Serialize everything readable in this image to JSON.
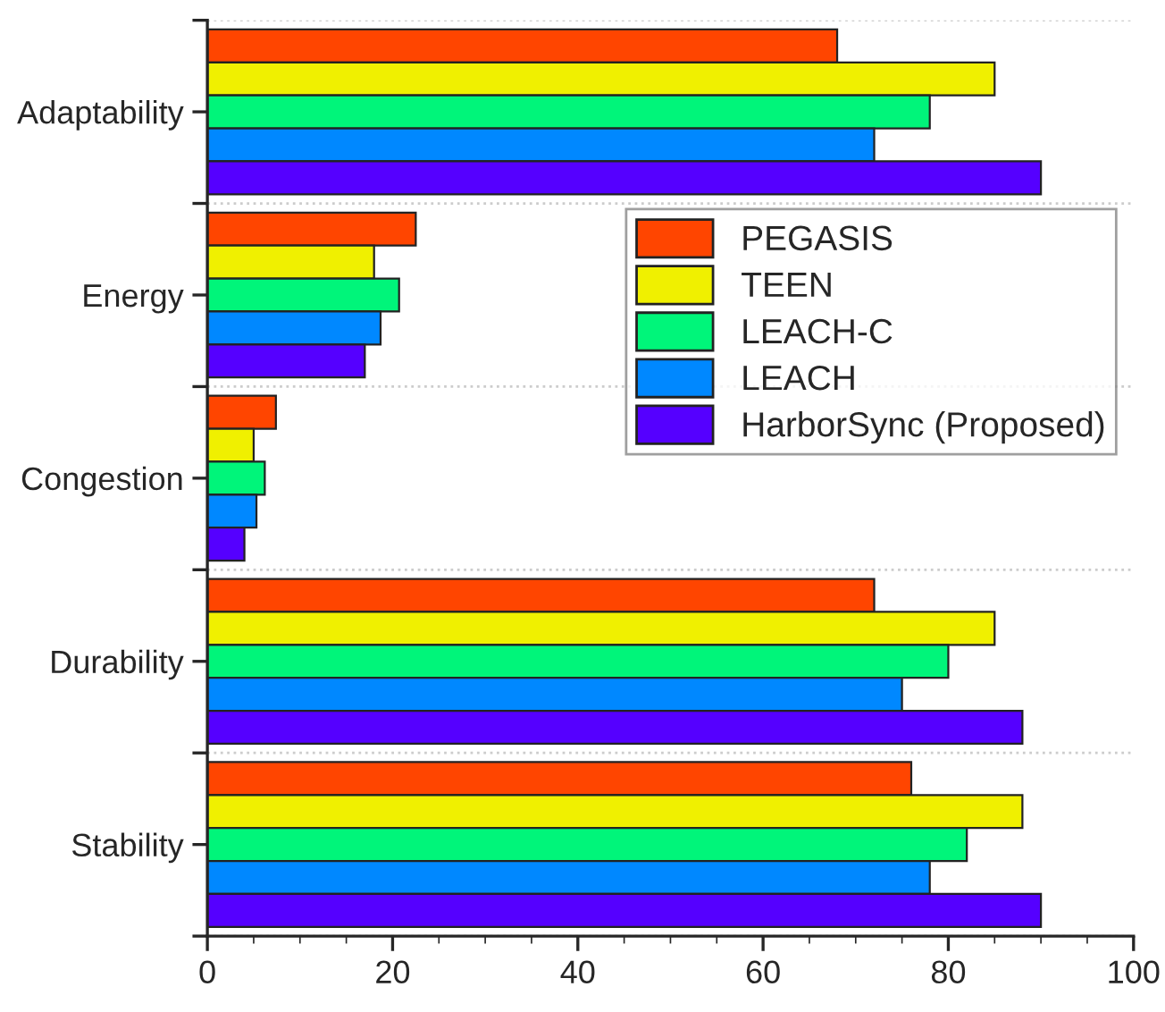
{
  "chart_data": {
    "type": "bar",
    "orientation": "horizontal",
    "categories": [
      "Adaptability",
      "Energy",
      "Congestion",
      "Durability",
      "Stability"
    ],
    "series": [
      {
        "name": "PEGASIS",
        "color": "#ff4500",
        "values": [
          68,
          22.5,
          7.4,
          72,
          76
        ]
      },
      {
        "name": "TEEN",
        "color": "#f0f000",
        "values": [
          85,
          18,
          5,
          85,
          88
        ]
      },
      {
        "name": "LEACH-C",
        "color": "#00f57a",
        "values": [
          78,
          20.7,
          6.2,
          80,
          82
        ]
      },
      {
        "name": "LEACH",
        "color": "#0088ff",
        "values": [
          72,
          18.7,
          5.3,
          75,
          78
        ]
      },
      {
        "name": "HarborSync (Proposed)",
        "color": "#5500ff",
        "values": [
          90,
          17,
          4,
          88,
          90
        ]
      }
    ],
    "xlim": [
      0,
      100
    ],
    "xticks": [
      0,
      20,
      40,
      60,
      80,
      100
    ],
    "grid": "y",
    "legend": "right"
  }
}
